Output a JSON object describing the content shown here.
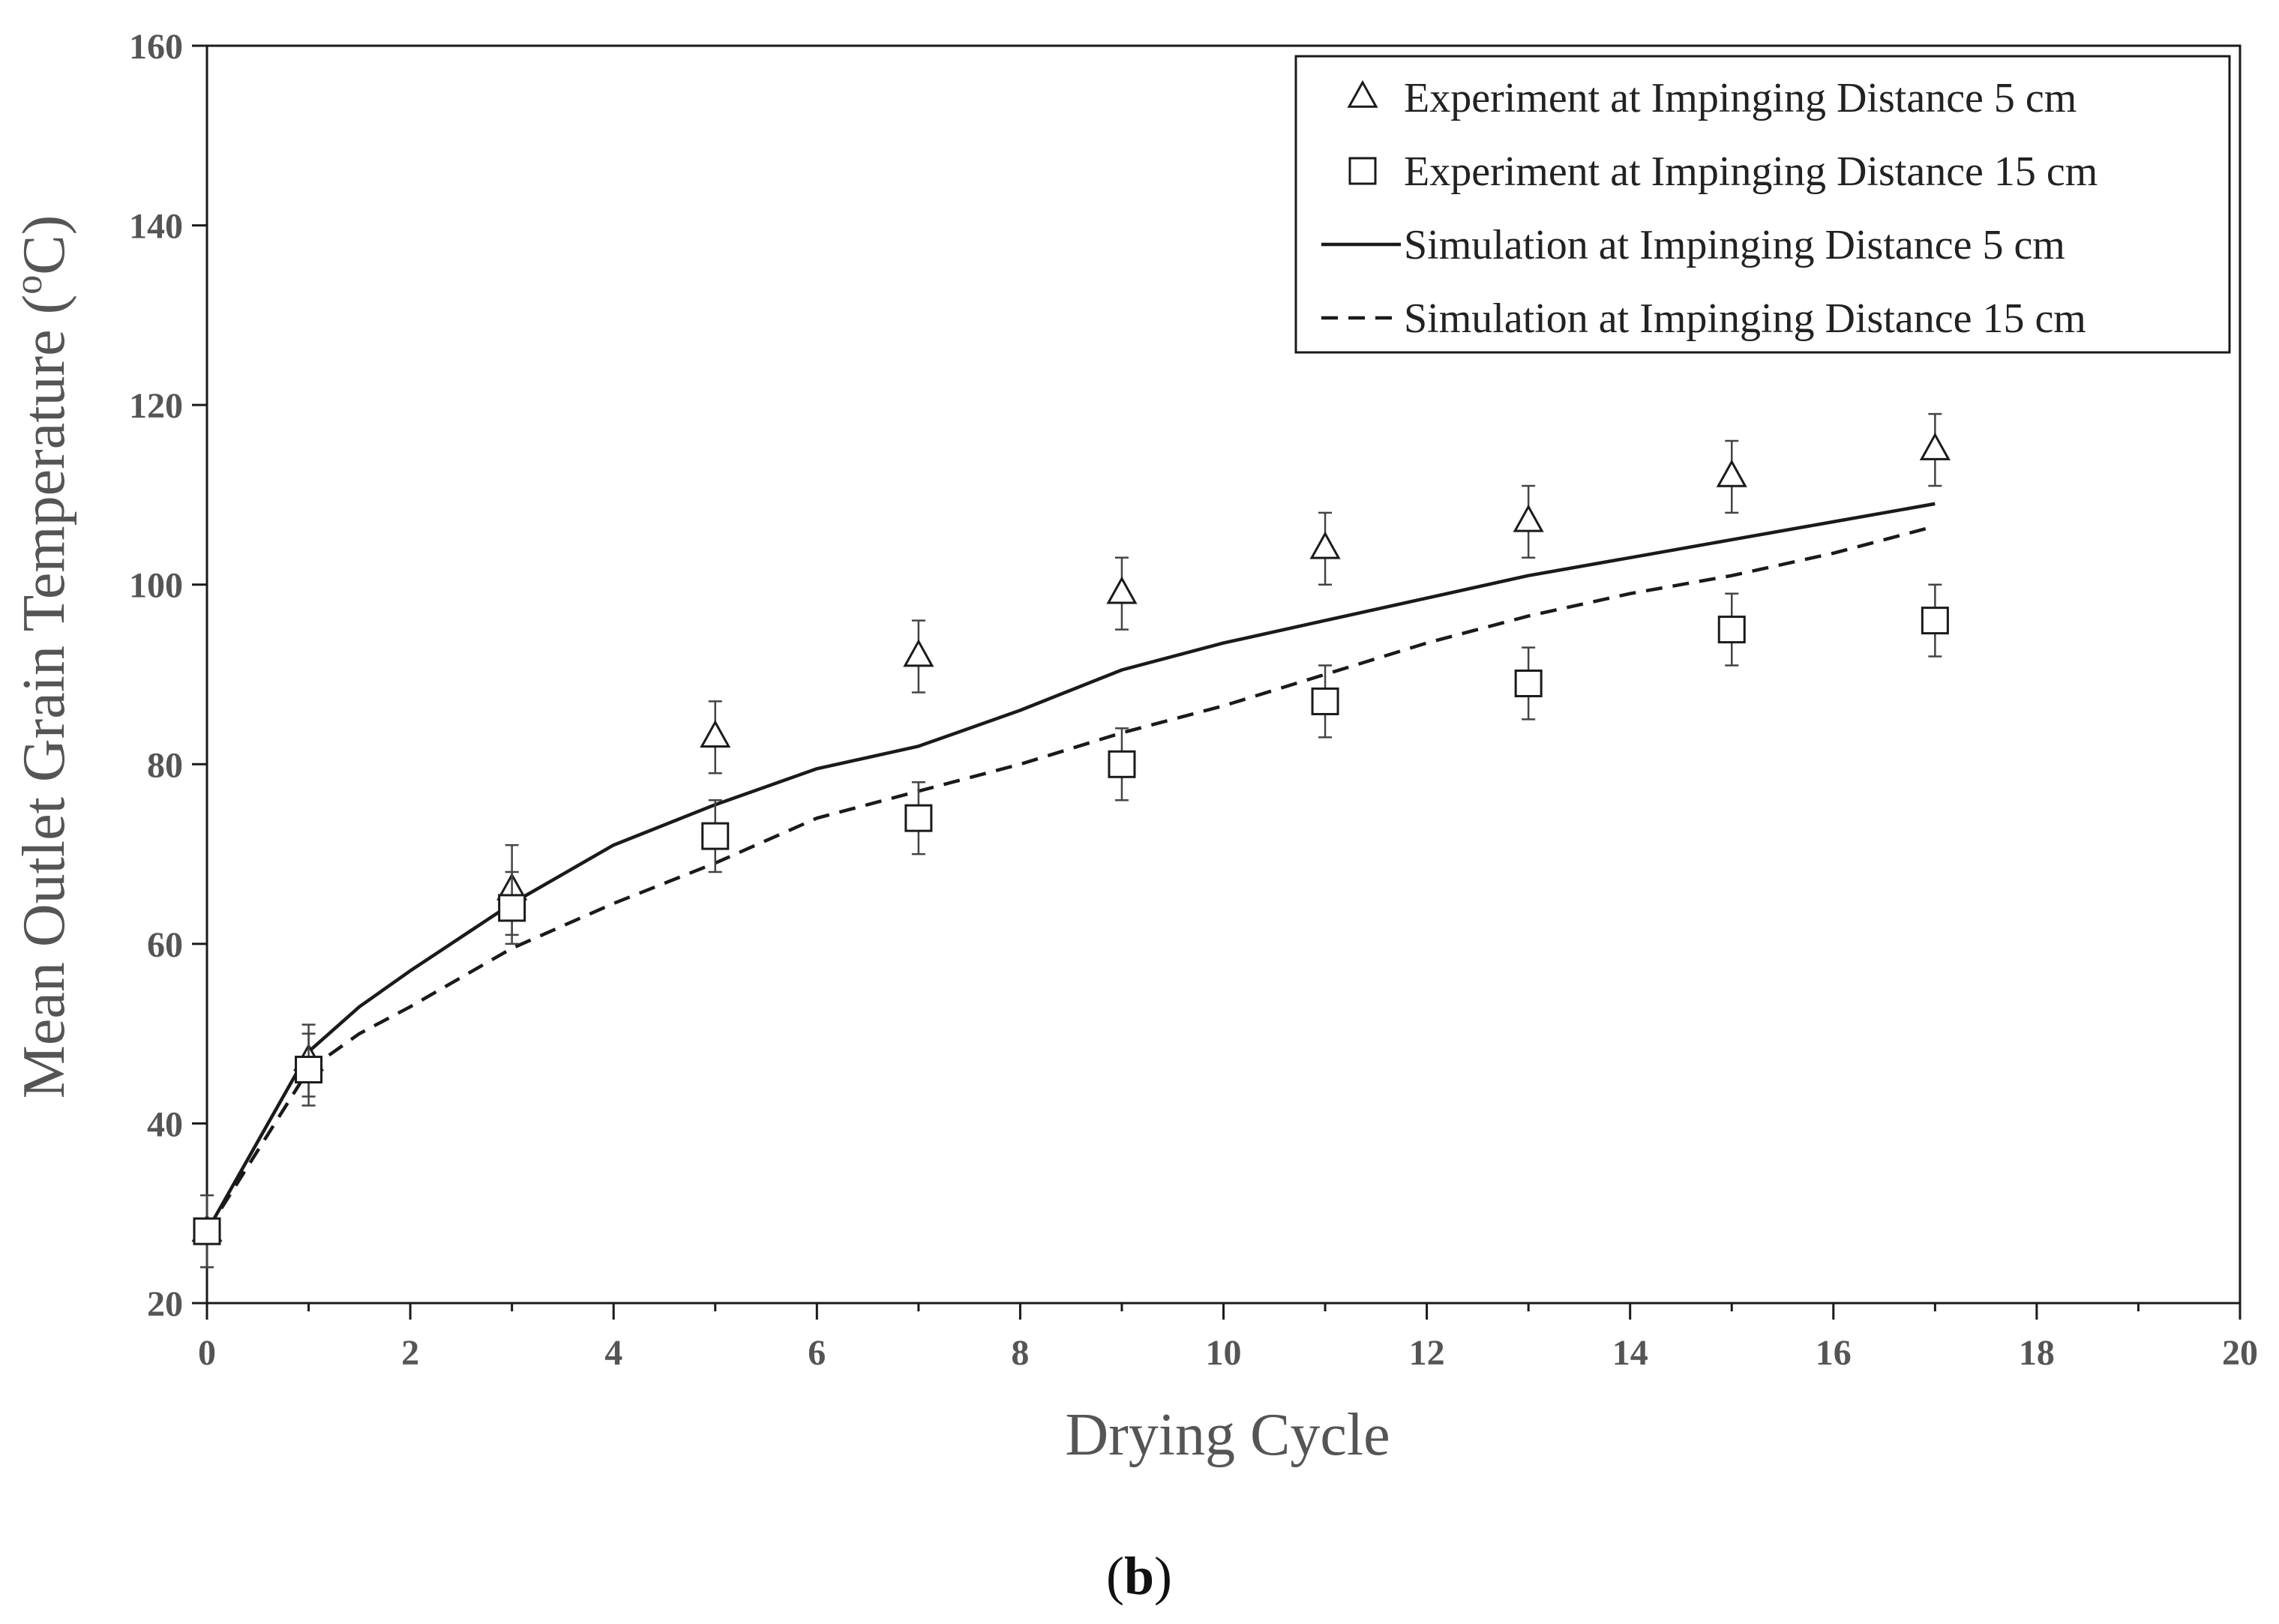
{
  "chart_data": {
    "type": "scatter",
    "title": "",
    "xlabel": "Drying Cycle",
    "ylabel_main": "Mean Outlet Grain Temperature (",
    "ylabel_sup": "o",
    "ylabel_end": "C)",
    "xlim": [
      0,
      20
    ],
    "ylim": [
      20,
      160
    ],
    "x_ticks": [
      0,
      2,
      4,
      6,
      8,
      10,
      12,
      14,
      16,
      18,
      20
    ],
    "y_ticks": [
      20,
      40,
      60,
      80,
      100,
      120,
      140,
      160
    ],
    "grid": false,
    "legend_position": "top-right",
    "series": [
      {
        "name": "Experiment at Impinging Distance 5 cm",
        "kind": "marker",
        "marker": "triangle",
        "x": [
          0,
          1,
          3,
          5,
          7,
          9,
          11,
          13,
          15,
          17
        ],
        "y": [
          28,
          47,
          66,
          83,
          92,
          99,
          104,
          107,
          112,
          115
        ],
        "error": [
          4,
          4,
          5,
          4,
          4,
          4,
          4,
          4,
          4,
          4
        ]
      },
      {
        "name": "Experiment at Impinging Distance 15 cm",
        "kind": "marker",
        "marker": "square",
        "x": [
          0,
          1,
          3,
          5,
          7,
          9,
          11,
          13,
          15,
          17
        ],
        "y": [
          28,
          46,
          64,
          72,
          74,
          80,
          87,
          89,
          95,
          96
        ],
        "error": [
          4,
          4,
          4,
          4,
          4,
          4,
          4,
          4,
          4,
          4
        ]
      },
      {
        "name": "Simulation at Impinging Distance 5 cm",
        "kind": "line",
        "dash": "solid",
        "x": [
          0,
          0.5,
          1,
          1.5,
          2,
          3,
          4,
          5,
          6,
          7,
          8,
          9,
          10,
          11,
          12,
          13,
          14,
          15,
          16,
          17
        ],
        "y": [
          28,
          38,
          48,
          53,
          57,
          64.5,
          71,
          75.5,
          79.5,
          82,
          86,
          90.5,
          93.5,
          96,
          98.5,
          101,
          103,
          105,
          107,
          109
        ]
      },
      {
        "name": "Simulation at Impinging Distance 15 cm",
        "kind": "line",
        "dash": "dashed",
        "x": [
          0,
          0.5,
          1,
          1.5,
          2,
          3,
          4,
          5,
          6,
          7,
          8,
          9,
          10,
          11,
          12,
          13,
          14,
          15,
          16,
          17
        ],
        "y": [
          28,
          37,
          46,
          50,
          53,
          59.5,
          64.5,
          69,
          74,
          77,
          80,
          83.5,
          86.5,
          90,
          93.5,
          96.5,
          99,
          101,
          103.5,
          106.5
        ]
      }
    ]
  },
  "panel_label": {
    "open": "(",
    "letter": "b",
    "close": ")"
  },
  "colors": {
    "axis": "#1a1a1a",
    "series": "#1a1a1a"
  }
}
